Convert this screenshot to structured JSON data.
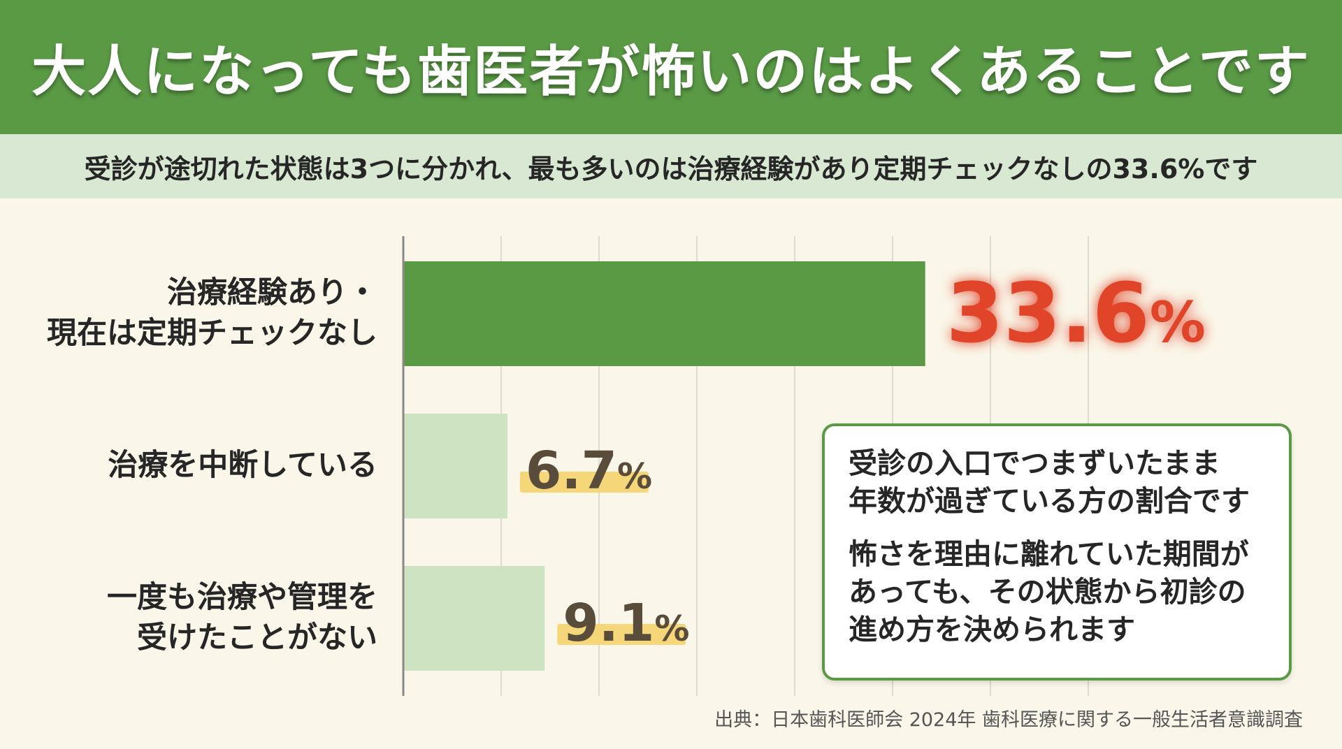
{
  "title": "大人になっても歯医者が怖いのはよくあることです",
  "subtitle": "受診が途切れた状態は3つに分かれ、最も多いのは治療経験があり定期チェックなしの33.6%です",
  "chart_data": {
    "type": "bar",
    "orientation": "horizontal",
    "categories": [
      [
        "治療経験あり・",
        "現在は定期チェックなし"
      ],
      [
        "治療を中断している"
      ],
      [
        "一度も治療や管理を",
        "受けたことがない"
      ]
    ],
    "values": [
      33.6,
      6.7,
      9.1
    ],
    "value_labels": [
      "33.6",
      "6.7",
      "9.1"
    ],
    "unit": "%",
    "xlim": [
      0,
      45
    ],
    "grid": true,
    "highlight_index": 0,
    "colors": {
      "highlight_bar": "#5a9a45",
      "other_bar": "#cde3c1",
      "highlight_value": "#e0452b",
      "other_value": "#5a4c3a",
      "value_marker": "#f5d77a",
      "axis": "#8a8a8a",
      "grid": "#dcdcd0"
    }
  },
  "note": {
    "paragraphs": [
      [
        "受診の入口でつまずいたまま",
        "年数が過ぎている方の割合です"
      ],
      [
        "怖さを理由に離れていた期間が",
        "あっても、その状態から初診の",
        "進め方を決められます"
      ]
    ]
  },
  "source": "出典：日本歯科医師会 2024年 歯科医療に関する一般生活者意識調査"
}
